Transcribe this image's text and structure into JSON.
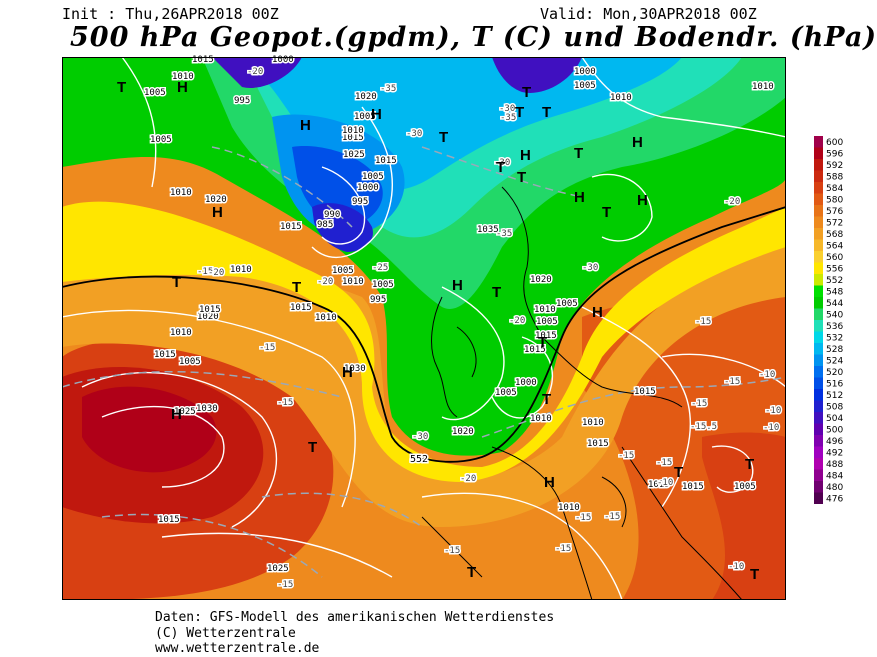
{
  "header": {
    "init": "Init : Thu,26APR2018 00Z",
    "valid": "Valid: Mon,30APR2018 00Z",
    "title": "500 hPa Geopot.(gpdm), T (C) und Bodendr. (hPa)"
  },
  "legend": {
    "values": [
      "600",
      "596",
      "592",
      "588",
      "584",
      "580",
      "576",
      "572",
      "568",
      "564",
      "560",
      "556",
      "552",
      "548",
      "544",
      "540",
      "536",
      "532",
      "528",
      "524",
      "520",
      "516",
      "512",
      "508",
      "504",
      "500",
      "496",
      "492",
      "488",
      "484",
      "480",
      "476"
    ],
    "colors": [
      "#a0004a",
      "#b00018",
      "#c0180e",
      "#cc2a10",
      "#d84012",
      "#e25a14",
      "#e87418",
      "#ee8a1e",
      "#f2a024",
      "#f6b82a",
      "#fad030",
      "#ffe600",
      "#ccea00",
      "#00e000",
      "#00cc00",
      "#22d868",
      "#20e0b8",
      "#00d8e8",
      "#00b8f0",
      "#0094f0",
      "#0070f0",
      "#0050e8",
      "#0030e0",
      "#2020d0",
      "#4010c0",
      "#6000b0",
      "#8000b0",
      "#a000c0",
      "#b000b0",
      "#900090",
      "#700070",
      "#500050"
    ]
  },
  "map": {
    "pressure_labels": [
      "1015",
      "1010",
      "1005",
      "995",
      "1000",
      "1000",
      "1005",
      "1010",
      "1010",
      "1005",
      "1020",
      "1015",
      "1010",
      "1005",
      "1010",
      "1020",
      "1025",
      "1015",
      "1005",
      "1000",
      "995",
      "990",
      "985",
      "1015",
      "1010",
      "1010",
      "1005",
      "1005",
      "995",
      "1015",
      "1010",
      "1020",
      "1015",
      "1010",
      "1005",
      "1015",
      "1025",
      "1030",
      "1035",
      "1020",
      "1010",
      "1005",
      "1015",
      "1005",
      "1015",
      "1005",
      "1000",
      "1010",
      "1020",
      "1015",
      "1015",
      "1010",
      "1015",
      "1015",
      "1005",
      "1010",
      "1015",
      "1030",
      "1025"
    ],
    "temp_labels": [
      "-20",
      "-35",
      "-30",
      "-35",
      "-30",
      "-30",
      "-30",
      "-20",
      "-15",
      "-20",
      "-25",
      "-35",
      "-30",
      "-25",
      "-20",
      "-15",
      "-15",
      "-20",
      "-15",
      "-15",
      "-15",
      "-15",
      "-10",
      "-15",
      "-15",
      "-15",
      "-20",
      "-15",
      "-15",
      "-10",
      "-10",
      "-10",
      "-15",
      "-10",
      "-15.5"
    ],
    "high_labels": [
      "H",
      "H",
      "H",
      "H",
      "H",
      "H",
      "H",
      "H",
      "H",
      "H",
      "H",
      "H",
      "H"
    ],
    "low_labels": [
      "T",
      "T",
      "T",
      "T",
      "T",
      "T",
      "T",
      "T",
      "T",
      "T",
      "T",
      "T",
      "T",
      "T",
      "T",
      "T",
      "T",
      "T",
      "T"
    ],
    "contour_label": "552"
  },
  "footer": {
    "line1": "Daten: GFS-Modell des amerikanischen Wetterdienstes",
    "line2": "(C) Wetterzentrale",
    "line3": "www.wetterzentrale.de"
  }
}
